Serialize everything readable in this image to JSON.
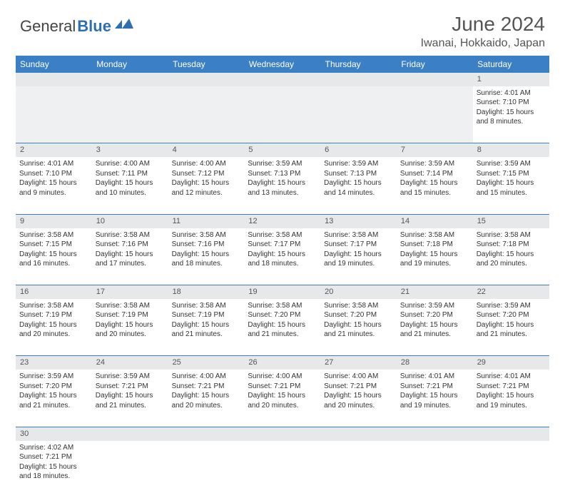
{
  "logo": {
    "text1": "General",
    "text2": "Blue"
  },
  "title": "June 2024",
  "location": "Iwanai, Hokkaido, Japan",
  "colors": {
    "header_bg": "#3b7fc4",
    "header_text": "#ffffff",
    "daynum_bg": "#e6e8ea",
    "border": "#3b7fc4",
    "body_text": "#333333",
    "title_text": "#555555"
  },
  "weekdays": [
    "Sunday",
    "Monday",
    "Tuesday",
    "Wednesday",
    "Thursday",
    "Friday",
    "Saturday"
  ],
  "weeks": [
    [
      null,
      null,
      null,
      null,
      null,
      null,
      {
        "n": "1",
        "sr": "Sunrise: 4:01 AM",
        "ss": "Sunset: 7:10 PM",
        "dl": "Daylight: 15 hours and 8 minutes."
      }
    ],
    [
      {
        "n": "2",
        "sr": "Sunrise: 4:01 AM",
        "ss": "Sunset: 7:10 PM",
        "dl": "Daylight: 15 hours and 9 minutes."
      },
      {
        "n": "3",
        "sr": "Sunrise: 4:00 AM",
        "ss": "Sunset: 7:11 PM",
        "dl": "Daylight: 15 hours and 10 minutes."
      },
      {
        "n": "4",
        "sr": "Sunrise: 4:00 AM",
        "ss": "Sunset: 7:12 PM",
        "dl": "Daylight: 15 hours and 12 minutes."
      },
      {
        "n": "5",
        "sr": "Sunrise: 3:59 AM",
        "ss": "Sunset: 7:13 PM",
        "dl": "Daylight: 15 hours and 13 minutes."
      },
      {
        "n": "6",
        "sr": "Sunrise: 3:59 AM",
        "ss": "Sunset: 7:13 PM",
        "dl": "Daylight: 15 hours and 14 minutes."
      },
      {
        "n": "7",
        "sr": "Sunrise: 3:59 AM",
        "ss": "Sunset: 7:14 PM",
        "dl": "Daylight: 15 hours and 15 minutes."
      },
      {
        "n": "8",
        "sr": "Sunrise: 3:59 AM",
        "ss": "Sunset: 7:15 PM",
        "dl": "Daylight: 15 hours and 15 minutes."
      }
    ],
    [
      {
        "n": "9",
        "sr": "Sunrise: 3:58 AM",
        "ss": "Sunset: 7:15 PM",
        "dl": "Daylight: 15 hours and 16 minutes."
      },
      {
        "n": "10",
        "sr": "Sunrise: 3:58 AM",
        "ss": "Sunset: 7:16 PM",
        "dl": "Daylight: 15 hours and 17 minutes."
      },
      {
        "n": "11",
        "sr": "Sunrise: 3:58 AM",
        "ss": "Sunset: 7:16 PM",
        "dl": "Daylight: 15 hours and 18 minutes."
      },
      {
        "n": "12",
        "sr": "Sunrise: 3:58 AM",
        "ss": "Sunset: 7:17 PM",
        "dl": "Daylight: 15 hours and 18 minutes."
      },
      {
        "n": "13",
        "sr": "Sunrise: 3:58 AM",
        "ss": "Sunset: 7:17 PM",
        "dl": "Daylight: 15 hours and 19 minutes."
      },
      {
        "n": "14",
        "sr": "Sunrise: 3:58 AM",
        "ss": "Sunset: 7:18 PM",
        "dl": "Daylight: 15 hours and 19 minutes."
      },
      {
        "n": "15",
        "sr": "Sunrise: 3:58 AM",
        "ss": "Sunset: 7:18 PM",
        "dl": "Daylight: 15 hours and 20 minutes."
      }
    ],
    [
      {
        "n": "16",
        "sr": "Sunrise: 3:58 AM",
        "ss": "Sunset: 7:19 PM",
        "dl": "Daylight: 15 hours and 20 minutes."
      },
      {
        "n": "17",
        "sr": "Sunrise: 3:58 AM",
        "ss": "Sunset: 7:19 PM",
        "dl": "Daylight: 15 hours and 20 minutes."
      },
      {
        "n": "18",
        "sr": "Sunrise: 3:58 AM",
        "ss": "Sunset: 7:19 PM",
        "dl": "Daylight: 15 hours and 21 minutes."
      },
      {
        "n": "19",
        "sr": "Sunrise: 3:58 AM",
        "ss": "Sunset: 7:20 PM",
        "dl": "Daylight: 15 hours and 21 minutes."
      },
      {
        "n": "20",
        "sr": "Sunrise: 3:58 AM",
        "ss": "Sunset: 7:20 PM",
        "dl": "Daylight: 15 hours and 21 minutes."
      },
      {
        "n": "21",
        "sr": "Sunrise: 3:59 AM",
        "ss": "Sunset: 7:20 PM",
        "dl": "Daylight: 15 hours and 21 minutes."
      },
      {
        "n": "22",
        "sr": "Sunrise: 3:59 AM",
        "ss": "Sunset: 7:20 PM",
        "dl": "Daylight: 15 hours and 21 minutes."
      }
    ],
    [
      {
        "n": "23",
        "sr": "Sunrise: 3:59 AM",
        "ss": "Sunset: 7:20 PM",
        "dl": "Daylight: 15 hours and 21 minutes."
      },
      {
        "n": "24",
        "sr": "Sunrise: 3:59 AM",
        "ss": "Sunset: 7:21 PM",
        "dl": "Daylight: 15 hours and 21 minutes."
      },
      {
        "n": "25",
        "sr": "Sunrise: 4:00 AM",
        "ss": "Sunset: 7:21 PM",
        "dl": "Daylight: 15 hours and 20 minutes."
      },
      {
        "n": "26",
        "sr": "Sunrise: 4:00 AM",
        "ss": "Sunset: 7:21 PM",
        "dl": "Daylight: 15 hours and 20 minutes."
      },
      {
        "n": "27",
        "sr": "Sunrise: 4:00 AM",
        "ss": "Sunset: 7:21 PM",
        "dl": "Daylight: 15 hours and 20 minutes."
      },
      {
        "n": "28",
        "sr": "Sunrise: 4:01 AM",
        "ss": "Sunset: 7:21 PM",
        "dl": "Daylight: 15 hours and 19 minutes."
      },
      {
        "n": "29",
        "sr": "Sunrise: 4:01 AM",
        "ss": "Sunset: 7:21 PM",
        "dl": "Daylight: 15 hours and 19 minutes."
      }
    ],
    [
      {
        "n": "30",
        "sr": "Sunrise: 4:02 AM",
        "ss": "Sunset: 7:21 PM",
        "dl": "Daylight: 15 hours and 18 minutes."
      },
      null,
      null,
      null,
      null,
      null,
      null
    ]
  ]
}
